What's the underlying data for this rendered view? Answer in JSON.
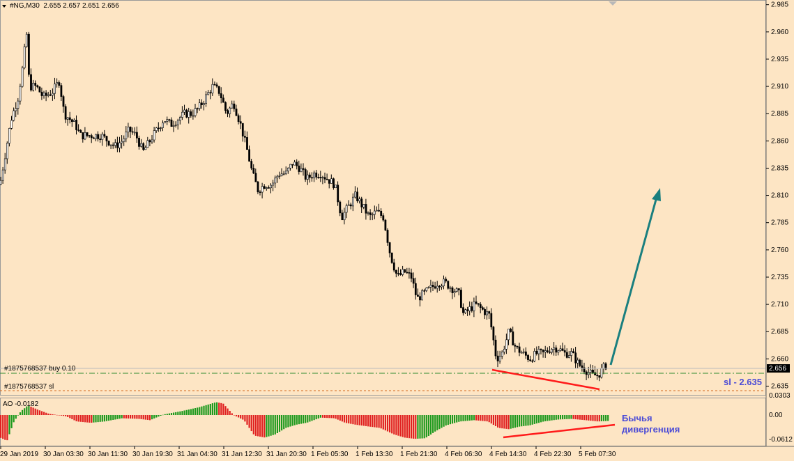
{
  "header": {
    "symbol": "#NG,M30",
    "ohlc": "2.655 2.657 2.651 2.656"
  },
  "orders": [
    {
      "label": "#1875768537 buy 0.10",
      "price": 2.655,
      "color": "#2e8b2e"
    },
    {
      "label": "#1875768537 sl",
      "price": 2.635,
      "color": "#d2691e"
    }
  ],
  "current_price": {
    "label": "2.656",
    "value": 2.656
  },
  "annotations": {
    "sl": "sl - 2.635",
    "divergence_line1": "Бычья",
    "divergence_line2": "дивергенция"
  },
  "indicator": {
    "label": "AO -0.0182",
    "ticks": [
      "0.0303",
      "0.00",
      "-0.0612"
    ]
  },
  "colors": {
    "background": "#fde5c4",
    "ao_up": "#1e9a1e",
    "ao_down": "#e02020",
    "arrow": "#1a7f7f",
    "divergence": "#ff0000"
  },
  "chart_data": {
    "type": "candlestick",
    "price_axis": {
      "range": [
        2.627,
        2.988
      ],
      "ticks": [
        "2.985",
        "2.960",
        "2.935",
        "2.910",
        "2.885",
        "2.860",
        "2.835",
        "2.810",
        "2.785",
        "2.760",
        "2.735",
        "2.710",
        "2.685",
        "2.660",
        "2.635"
      ]
    },
    "time_axis": [
      "29 Jan 2019",
      "30 Jan 03:30",
      "30 Jan 11:30",
      "30 Jan 19:30",
      "31 Jan 04:30",
      "31 Jan 12:30",
      "31 Jan 20:30",
      "1 Feb 05:30",
      "1 Feb 13:30",
      "1 Feb 21:30",
      "4 Feb 06:30",
      "4 Feb 14:30",
      "4 Feb 22:30",
      "5 Feb 07:30"
    ],
    "close_path": [
      [
        0,
        2.82
      ],
      [
        8,
        2.85
      ],
      [
        16,
        2.88
      ],
      [
        26,
        2.9
      ],
      [
        33,
        2.93
      ],
      [
        38,
        2.96
      ],
      [
        42,
        2.91
      ],
      [
        52,
        2.91
      ],
      [
        62,
        2.9
      ],
      [
        75,
        2.905
      ],
      [
        85,
        2.915
      ],
      [
        92,
        2.885
      ],
      [
        100,
        2.88
      ],
      [
        108,
        2.875
      ],
      [
        115,
        2.865
      ],
      [
        125,
        2.865
      ],
      [
        135,
        2.865
      ],
      [
        145,
        2.865
      ],
      [
        155,
        2.86
      ],
      [
        165,
        2.855
      ],
      [
        175,
        2.86
      ],
      [
        185,
        2.87
      ],
      [
        195,
        2.865
      ],
      [
        205,
        2.85
      ],
      [
        215,
        2.86
      ],
      [
        225,
        2.87
      ],
      [
        235,
        2.88
      ],
      [
        245,
        2.875
      ],
      [
        255,
        2.88
      ],
      [
        265,
        2.885
      ],
      [
        275,
        2.885
      ],
      [
        285,
        2.89
      ],
      [
        295,
        2.9
      ],
      [
        305,
        2.91
      ],
      [
        315,
        2.905
      ],
      [
        325,
        2.885
      ],
      [
        335,
        2.895
      ],
      [
        345,
        2.875
      ],
      [
        355,
        2.85
      ],
      [
        362,
        2.83
      ],
      [
        370,
        2.815
      ],
      [
        380,
        2.82
      ],
      [
        390,
        2.82
      ],
      [
        400,
        2.83
      ],
      [
        410,
        2.83
      ],
      [
        420,
        2.84
      ],
      [
        430,
        2.835
      ],
      [
        440,
        2.825
      ],
      [
        450,
        2.83
      ],
      [
        460,
        2.83
      ],
      [
        470,
        2.825
      ],
      [
        480,
        2.82
      ],
      [
        490,
        2.79
      ],
      [
        500,
        2.8
      ],
      [
        510,
        2.81
      ],
      [
        520,
        2.8
      ],
      [
        530,
        2.79
      ],
      [
        540,
        2.795
      ],
      [
        550,
        2.79
      ],
      [
        560,
        2.755
      ],
      [
        570,
        2.735
      ],
      [
        580,
        2.74
      ],
      [
        590,
        2.735
      ],
      [
        598,
        2.715
      ],
      [
        608,
        2.72
      ],
      [
        618,
        2.725
      ],
      [
        628,
        2.73
      ],
      [
        638,
        2.73
      ],
      [
        648,
        2.725
      ],
      [
        658,
        2.72
      ],
      [
        665,
        2.7
      ],
      [
        672,
        2.705
      ],
      [
        682,
        2.71
      ],
      [
        692,
        2.705
      ],
      [
        702,
        2.7
      ],
      [
        712,
        2.66
      ],
      [
        720,
        2.665
      ],
      [
        730,
        2.685
      ],
      [
        740,
        2.67
      ],
      [
        750,
        2.665
      ],
      [
        760,
        2.66
      ],
      [
        770,
        2.665
      ],
      [
        780,
        2.665
      ],
      [
        790,
        2.67
      ],
      [
        800,
        2.67
      ],
      [
        810,
        2.665
      ],
      [
        820,
        2.665
      ],
      [
        830,
        2.655
      ],
      [
        840,
        2.65
      ],
      [
        850,
        2.645
      ],
      [
        858,
        2.645
      ],
      [
        866,
        2.652
      ],
      [
        872,
        2.656
      ]
    ]
  }
}
